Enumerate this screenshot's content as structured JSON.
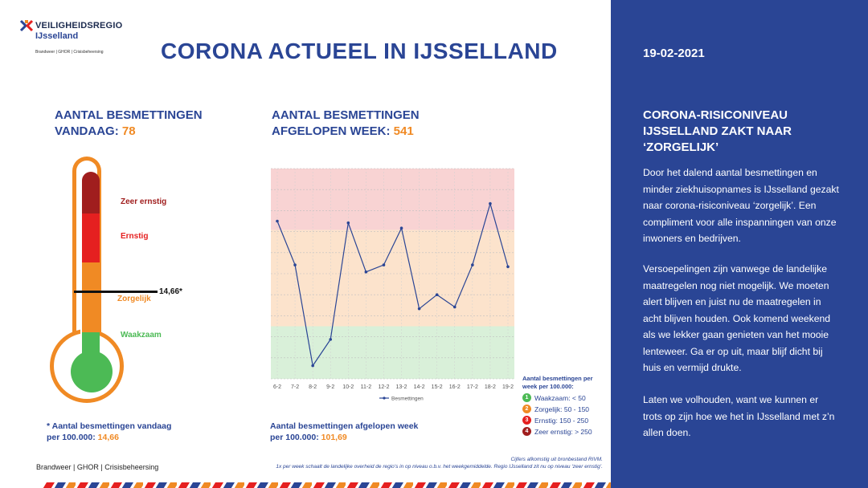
{
  "logo": {
    "line1": "VEILIGHEIDSREGIO",
    "line2": "IJsselland",
    "sub": "Brandweer | GHOR | Crisisbeheersing"
  },
  "title": "CORONA ACTUEEL IN IJSSELLAND",
  "date": "19-02-2021",
  "today": {
    "heading_line1": "AANTAL BESMETTINGEN",
    "heading_line2_prefix": "VANDAAG: ",
    "value": "78"
  },
  "week": {
    "heading_line1": "AANTAL BESMETTINGEN",
    "heading_line2_prefix": "AFGELOPEN WEEK: ",
    "value": "541"
  },
  "thermometer": {
    "levels": [
      {
        "label": "Zeer ernstig",
        "color": "#a01e1e"
      },
      {
        "label": "Ernstig",
        "color": "#e52020"
      },
      {
        "label": "Zorgelijk",
        "color": "#f08a24"
      },
      {
        "label": "Waakzaam",
        "color": "#4cba55"
      }
    ],
    "marker_value": "14,66*"
  },
  "footnote_today": {
    "line1": "* Aantal besmettingen vandaag",
    "line2_prefix": "per 100.000: ",
    "value": "14,66"
  },
  "footnote_week": {
    "line1": "Aantal besmettingen afgelopen week",
    "line2_prefix": "per 100.000: ",
    "value": "101,69"
  },
  "chart_data": {
    "type": "line",
    "x": [
      "6-2",
      "7-2",
      "8-2",
      "9-2",
      "10-2",
      "11-2",
      "12-2",
      "13-2",
      "14-2",
      "15-2",
      "16-2",
      "17-2",
      "18-2",
      "19-2"
    ],
    "series": [
      {
        "name": "Besmettingen",
        "values": [
          300,
          250,
          135,
          165,
          298,
          242,
          250,
          292,
          200,
          216,
          202,
          250,
          320,
          248
        ],
        "color": "#2a4595"
      }
    ],
    "ylim": [
      120,
      360
    ],
    "bands": [
      {
        "from": 120,
        "to": 180,
        "color": "#d9f0d9"
      },
      {
        "from": 180,
        "to": 290,
        "color": "#fce3cc"
      },
      {
        "from": 290,
        "to": 360,
        "color": "#f8d3d3"
      }
    ],
    "grid": true,
    "legend": "bottom",
    "xlabel": "",
    "ylabel": ""
  },
  "legend_box": {
    "title": "Aantal besmettingen per week per 100.000:",
    "items": [
      {
        "num": "1",
        "label": "Waakzaam: < 50",
        "color": "#4cba55"
      },
      {
        "num": "2",
        "label": "Zorgelijk: 50 - 150",
        "color": "#f08a24"
      },
      {
        "num": "3",
        "label": "Ernstig: 150 - 250",
        "color": "#e52020"
      },
      {
        "num": "4",
        "label": "Zeer ernstig: > 250",
        "color": "#a01e1e"
      }
    ]
  },
  "source": {
    "line1": "Cijfers afkomstig uit bronbestand RIVM.",
    "line2": "1x per week schaalt de landelijke overheid de regio’s in op niveau o.b.v. het weekgemiddelde. Regio IJsselland zit nu op niveau ‘zeer ernstig’."
  },
  "org_footer": "Brandweer | GHOR | Crisisbeheersing",
  "sidebar": {
    "title_lines": [
      "CORONA-RISICONIVEAU",
      "IJSSELLAND ZAKT NAAR",
      "‘ZORGELIJK’"
    ],
    "p1": [
      "Door het dalend aantal besmettingen en",
      "minder ziekhuisopnames is IJsselland gezakt",
      "naar corona-risiconiveau ‘zorgelijk’. Een",
      "compliment voor alle inspanningen van onze",
      "inwoners en bedrijven."
    ],
    "p2": [
      "Versoepelingen zijn vanwege de landelijke",
      "maatregelen nog niet mogelijk. We moeten",
      "alert blijven en juist nu de maatregelen in",
      "acht blijven houden. Ook komend weekend",
      "als we lekker gaan genieten van het mooie",
      "lenteweer. Ga er op uit, maar blijf dicht bij",
      "huis en vermijd drukte."
    ],
    "p3": [
      "Laten we volhouden, want we kunnen er",
      "trots op zijn hoe we het in IJsselland met z’n",
      "allen doen."
    ]
  }
}
